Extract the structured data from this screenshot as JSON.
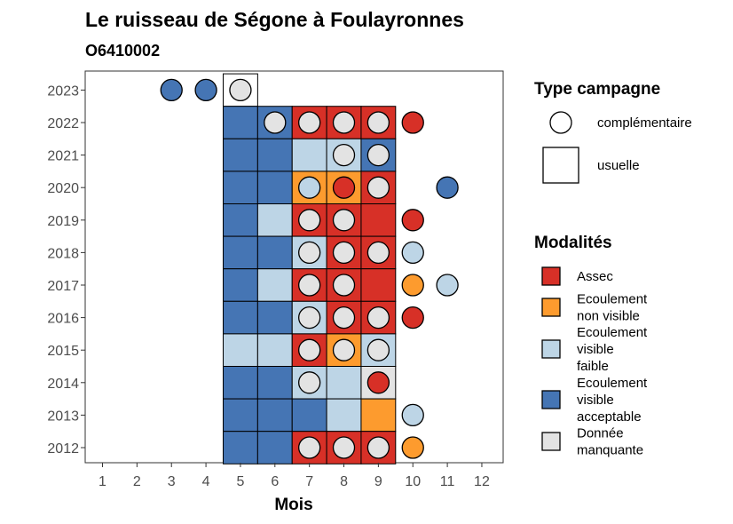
{
  "title": "Le ruisseau de Ségone à Foulayronnes",
  "subtitle": "O6410002",
  "chart_data": {
    "type": "heatmap",
    "x_label": "Mois",
    "x_ticks": [
      1,
      2,
      3,
      4,
      5,
      6,
      7,
      8,
      9,
      10,
      11,
      12
    ],
    "y_ticks": [
      2012,
      2013,
      2014,
      2015,
      2016,
      2017,
      2018,
      2019,
      2020,
      2021,
      2022,
      2023
    ],
    "grid": false,
    "legend_position": "right",
    "colors": {
      "assec": "#d73027",
      "nonvisible": "#fd9b2e",
      "faible": "#bdd5e6",
      "acceptable": "#4575b4",
      "manquante": "#e3e3e3"
    },
    "legend_type": {
      "title": "Type campagne",
      "items": [
        {
          "label": "complémentaire",
          "shape": "circle"
        },
        {
          "label": "usuelle",
          "shape": "square"
        }
      ]
    },
    "legend_modalites": {
      "title": "Modalités",
      "items": [
        {
          "key": "assec",
          "lines": [
            "Assec"
          ]
        },
        {
          "key": "nonvisible",
          "lines": [
            "Ecoulement",
            "non visible"
          ]
        },
        {
          "key": "faible",
          "lines": [
            "Ecoulement",
            "visible",
            "faible"
          ]
        },
        {
          "key": "acceptable",
          "lines": [
            "Ecoulement",
            "visible",
            "acceptable"
          ]
        },
        {
          "key": "manquante",
          "lines": [
            "Donnée",
            "manquante"
          ]
        }
      ]
    },
    "tiles": [
      {
        "year": 2023,
        "month": 5,
        "value": "faible",
        "fill": "none"
      },
      {
        "year": 2022,
        "month": 5,
        "value": "acceptable"
      },
      {
        "year": 2022,
        "month": 6,
        "value": "acceptable"
      },
      {
        "year": 2022,
        "month": 7,
        "value": "assec"
      },
      {
        "year": 2022,
        "month": 8,
        "value": "assec"
      },
      {
        "year": 2022,
        "month": 9,
        "value": "assec"
      },
      {
        "year": 2021,
        "month": 5,
        "value": "acceptable"
      },
      {
        "year": 2021,
        "month": 6,
        "value": "acceptable"
      },
      {
        "year": 2021,
        "month": 7,
        "value": "faible"
      },
      {
        "year": 2021,
        "month": 8,
        "value": "faible"
      },
      {
        "year": 2021,
        "month": 9,
        "value": "acceptable"
      },
      {
        "year": 2020,
        "month": 5,
        "value": "acceptable"
      },
      {
        "year": 2020,
        "month": 6,
        "value": "acceptable"
      },
      {
        "year": 2020,
        "month": 7,
        "value": "nonvisible"
      },
      {
        "year": 2020,
        "month": 8,
        "value": "nonvisible"
      },
      {
        "year": 2020,
        "month": 9,
        "value": "assec"
      },
      {
        "year": 2019,
        "month": 5,
        "value": "acceptable"
      },
      {
        "year": 2019,
        "month": 6,
        "value": "faible"
      },
      {
        "year": 2019,
        "month": 7,
        "value": "assec"
      },
      {
        "year": 2019,
        "month": 8,
        "value": "assec"
      },
      {
        "year": 2019,
        "month": 9,
        "value": "assec"
      },
      {
        "year": 2018,
        "month": 5,
        "value": "acceptable"
      },
      {
        "year": 2018,
        "month": 6,
        "value": "acceptable"
      },
      {
        "year": 2018,
        "month": 7,
        "value": "faible"
      },
      {
        "year": 2018,
        "month": 8,
        "value": "assec"
      },
      {
        "year": 2018,
        "month": 9,
        "value": "assec"
      },
      {
        "year": 2017,
        "month": 5,
        "value": "acceptable"
      },
      {
        "year": 2017,
        "month": 6,
        "value": "faible"
      },
      {
        "year": 2017,
        "month": 7,
        "value": "assec"
      },
      {
        "year": 2017,
        "month": 8,
        "value": "assec"
      },
      {
        "year": 2017,
        "month": 9,
        "value": "assec"
      },
      {
        "year": 2016,
        "month": 5,
        "value": "acceptable"
      },
      {
        "year": 2016,
        "month": 6,
        "value": "acceptable"
      },
      {
        "year": 2016,
        "month": 7,
        "value": "faible"
      },
      {
        "year": 2016,
        "month": 8,
        "value": "assec"
      },
      {
        "year": 2016,
        "month": 9,
        "value": "assec"
      },
      {
        "year": 2015,
        "month": 5,
        "value": "faible"
      },
      {
        "year": 2015,
        "month": 6,
        "value": "faible"
      },
      {
        "year": 2015,
        "month": 7,
        "value": "assec"
      },
      {
        "year": 2015,
        "month": 8,
        "value": "nonvisible"
      },
      {
        "year": 2015,
        "month": 9,
        "value": "faible"
      },
      {
        "year": 2014,
        "month": 5,
        "value": "acceptable"
      },
      {
        "year": 2014,
        "month": 6,
        "value": "acceptable"
      },
      {
        "year": 2014,
        "month": 7,
        "value": "faible"
      },
      {
        "year": 2014,
        "month": 8,
        "value": "faible"
      },
      {
        "year": 2014,
        "month": 9,
        "value": "manquante"
      },
      {
        "year": 2013,
        "month": 5,
        "value": "acceptable"
      },
      {
        "year": 2013,
        "month": 6,
        "value": "acceptable"
      },
      {
        "year": 2013,
        "month": 7,
        "value": "acceptable"
      },
      {
        "year": 2013,
        "month": 8,
        "value": "faible"
      },
      {
        "year": 2013,
        "month": 9,
        "value": "nonvisible"
      },
      {
        "year": 2012,
        "month": 5,
        "value": "acceptable"
      },
      {
        "year": 2012,
        "month": 6,
        "value": "acceptable"
      },
      {
        "year": 2012,
        "month": 7,
        "value": "assec"
      },
      {
        "year": 2012,
        "month": 8,
        "value": "assec"
      },
      {
        "year": 2012,
        "month": 9,
        "value": "assec"
      }
    ],
    "points": [
      {
        "year": 2023,
        "month": 3,
        "value": "acceptable"
      },
      {
        "year": 2023,
        "month": 4,
        "value": "acceptable"
      },
      {
        "year": 2023,
        "month": 5,
        "value": "manquante"
      },
      {
        "year": 2022,
        "month": 6,
        "value": "manquante"
      },
      {
        "year": 2022,
        "month": 7,
        "value": "manquante"
      },
      {
        "year": 2022,
        "month": 8,
        "value": "manquante"
      },
      {
        "year": 2022,
        "month": 9,
        "value": "manquante"
      },
      {
        "year": 2022,
        "month": 10,
        "value": "assec"
      },
      {
        "year": 2021,
        "month": 8,
        "value": "manquante"
      },
      {
        "year": 2021,
        "month": 9,
        "value": "manquante"
      },
      {
        "year": 2020,
        "month": 7,
        "value": "faible"
      },
      {
        "year": 2020,
        "month": 8,
        "value": "assec"
      },
      {
        "year": 2020,
        "month": 9,
        "value": "manquante"
      },
      {
        "year": 2020,
        "month": 11,
        "value": "acceptable"
      },
      {
        "year": 2019,
        "month": 7,
        "value": "manquante"
      },
      {
        "year": 2019,
        "month": 8,
        "value": "manquante"
      },
      {
        "year": 2019,
        "month": 10,
        "value": "assec"
      },
      {
        "year": 2018,
        "month": 7,
        "value": "manquante"
      },
      {
        "year": 2018,
        "month": 8,
        "value": "manquante"
      },
      {
        "year": 2018,
        "month": 9,
        "value": "manquante"
      },
      {
        "year": 2018,
        "month": 10,
        "value": "faible"
      },
      {
        "year": 2017,
        "month": 7,
        "value": "manquante"
      },
      {
        "year": 2017,
        "month": 8,
        "value": "manquante"
      },
      {
        "year": 2017,
        "month": 10,
        "value": "nonvisible"
      },
      {
        "year": 2017,
        "month": 11,
        "value": "faible"
      },
      {
        "year": 2016,
        "month": 7,
        "value": "manquante"
      },
      {
        "year": 2016,
        "month": 8,
        "value": "manquante"
      },
      {
        "year": 2016,
        "month": 9,
        "value": "manquante"
      },
      {
        "year": 2016,
        "month": 10,
        "value": "assec"
      },
      {
        "year": 2015,
        "month": 7,
        "value": "manquante"
      },
      {
        "year": 2015,
        "month": 8,
        "value": "manquante"
      },
      {
        "year": 2015,
        "month": 9,
        "value": "manquante"
      },
      {
        "year": 2014,
        "month": 7,
        "value": "manquante"
      },
      {
        "year": 2014,
        "month": 9,
        "value": "assec"
      },
      {
        "year": 2013,
        "month": 10,
        "value": "faible"
      },
      {
        "year": 2012,
        "month": 7,
        "value": "manquante"
      },
      {
        "year": 2012,
        "month": 8,
        "value": "manquante"
      },
      {
        "year": 2012,
        "month": 9,
        "value": "manquante"
      },
      {
        "year": 2012,
        "month": 10,
        "value": "nonvisible"
      }
    ]
  }
}
